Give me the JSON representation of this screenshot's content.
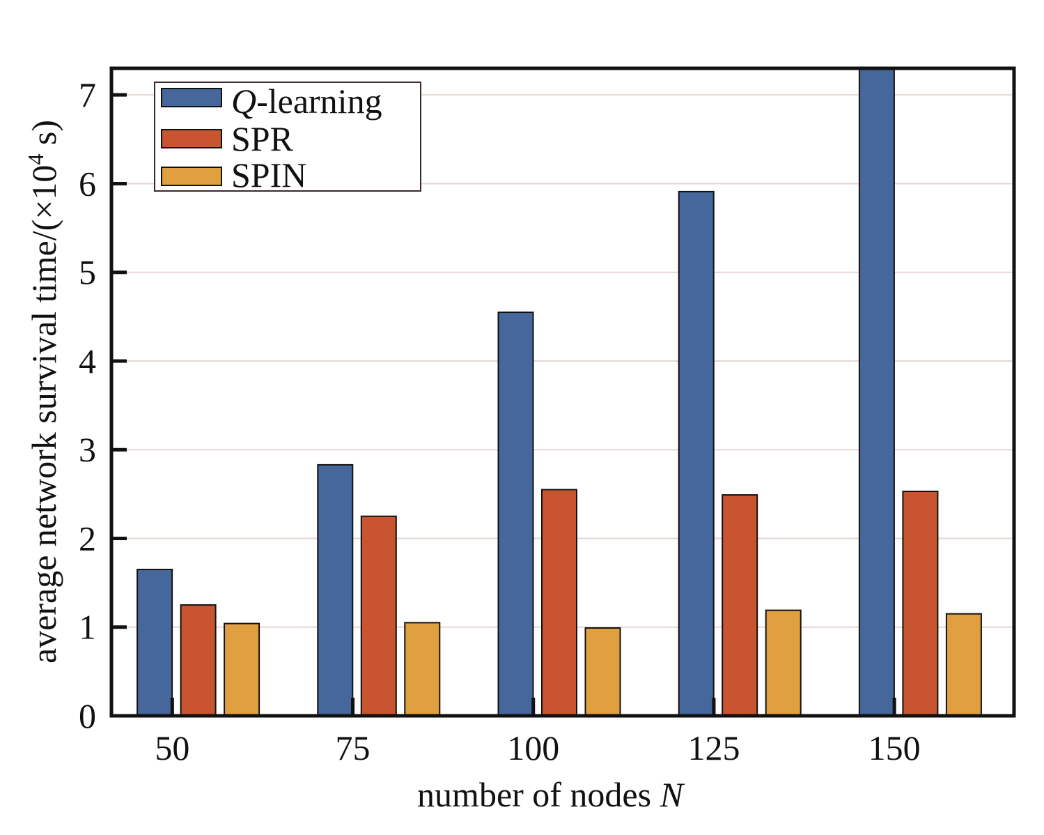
{
  "chart_data": {
    "type": "bar",
    "categories": [
      "50",
      "75",
      "100",
      "125",
      "150"
    ],
    "series": [
      {
        "name": "Q-learning",
        "name_prefix": "Q",
        "name_suffix": "-learning",
        "color": "#45679c",
        "values": [
          1.65,
          2.83,
          4.55,
          5.91,
          7.3
        ]
      },
      {
        "name": "SPR",
        "color": "#c85530",
        "values": [
          1.25,
          2.25,
          2.55,
          2.49,
          2.53
        ]
      },
      {
        "name": "SPIN",
        "color": "#e0a040",
        "values": [
          1.04,
          1.05,
          0.99,
          1.19,
          1.15
        ]
      }
    ],
    "ylim": [
      0,
      7.3
    ],
    "yticks": [
      "0",
      "1",
      "2",
      "3",
      "4",
      "5",
      "6",
      "7"
    ],
    "ytick_values": [
      0,
      1,
      2,
      3,
      4,
      5,
      6,
      7
    ],
    "xlabel_prefix": "number of nodes ",
    "xlabel_var": "N",
    "ylabel_prefix": "average network survival time/(×10",
    "ylabel_sup": "4",
    "ylabel_suffix": " s)",
    "grid": true,
    "grid_color": "#e6d6d3",
    "legend_position": "top-left"
  }
}
